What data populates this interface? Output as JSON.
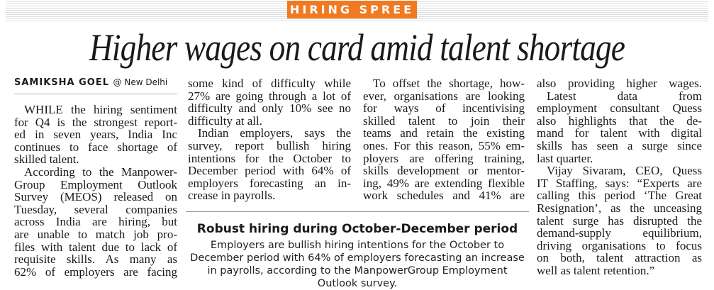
{
  "kicker": "HIRING SPREE",
  "headline": "Higher wages on card amid talent shortage",
  "byline": {
    "author": "SAMIKSHA GOEL",
    "location": "@ New Delhi"
  },
  "columns": [
    [
      [
        "WHILE the hiring sentiment",
        "for Q4 is the strongest report-",
        "ed in seven years, India Inc",
        "continues to face shortage of",
        "skilled talent."
      ],
      [
        "According to the Manpower-",
        "Group Employment Outlook",
        "Survey (MEOS) released on",
        "Tuesday, several companies",
        "across India are hiring, but",
        "are unable to match job pro-",
        "files with talent due to lack of",
        "requisite skills. As many as",
        "62% of employers are facing"
      ]
    ],
    [
      [
        "some kind of difficulty while",
        "27% are going through a lot of",
        "difficulty and only 10% see no",
        "difficulty at all."
      ],
      [
        "Indian employers, says the",
        "survey, report bullish hiring",
        "intentions for the October to",
        "December period with 64% of",
        "employers forecasting an in-",
        "crease in payrolls."
      ]
    ],
    [
      [
        "To offset the shortage, how-",
        "ever, organisations are looking",
        "for ways of incentivising",
        "skilled talent to join their",
        "teams and retain the existing",
        "ones. For this reason, 55% em-",
        "ployers are offering training,",
        "skills development or mentor-",
        "ing, 49% are extending flexible",
        "work schedules and 41% are"
      ]
    ],
    [
      [
        "also providing higher wages."
      ],
      [
        "Latest data from",
        "employment consultant Quess",
        "also highlights that the de-",
        "mand for talent with digital",
        "skills has seen a surge since",
        "last quarter."
      ],
      [
        "Vijay Sivaram, CEO, Quess",
        "IT Staffing, says: “Experts are",
        "calling this period ‘The Great",
        "Resignation’, as the unceasing",
        "talent surge has disrupted the",
        "demand-supply equilibrium,",
        "driving organisations to focus",
        "on both, talent attraction as",
        "well as talent retention.”"
      ]
    ]
  ],
  "box": {
    "title": "Robust hiring during October-December period",
    "body": "Employers are bullish hiring intentions for the October to December period with 64% of employers forecasting an increase in payrolls, according to the ManpowerGroup Employment Outlook survey."
  }
}
